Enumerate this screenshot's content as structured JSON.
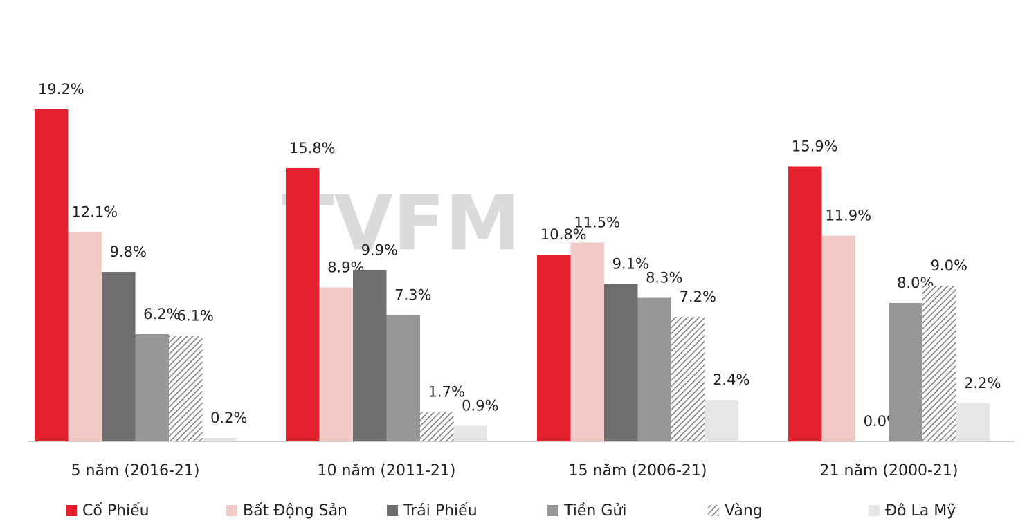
{
  "chart_data": {
    "type": "bar",
    "watermark": "TVFM",
    "categories": [
      "5 năm (2016-21)",
      "10 năm (2011-21)",
      "15 năm (2006-21)",
      "21 năm (2000-21)"
    ],
    "series": [
      {
        "name": "Cố Phiếu",
        "color": "#e3202e",
        "values": [
          19.2,
          15.8,
          10.8,
          15.9
        ],
        "value_labels": [
          "19.2%",
          "15.8%",
          "10.8%",
          "15.9%"
        ]
      },
      {
        "name": "Bất Động Sản",
        "color": "#f2cac5",
        "values": [
          12.1,
          8.9,
          11.5,
          11.9
        ],
        "value_labels": [
          "12.1%",
          "8.9%",
          "11.5%",
          "11.9%"
        ]
      },
      {
        "name": "Trái Phiếu",
        "color": "#6e6e6e",
        "values": [
          9.8,
          9.9,
          9.1,
          0.0
        ],
        "value_labels": [
          "9.8%",
          "9.9%",
          "9.1%",
          "0.0%"
        ]
      },
      {
        "name": "Tiền Gửi",
        "color": "#979797",
        "values": [
          6.2,
          7.3,
          8.3,
          8.0
        ],
        "value_labels": [
          "6.2%",
          "7.3%",
          "8.3%",
          "8.0%"
        ]
      },
      {
        "name": "Vàng",
        "color": "#7a7a7a",
        "hatch": true,
        "values": [
          6.1,
          1.7,
          7.2,
          9.0
        ],
        "value_labels": [
          "6.1%",
          "1.7%",
          "7.2%",
          "9.0%"
        ]
      },
      {
        "name": "Đô La Mỹ",
        "color": "#e6e6e6",
        "values": [
          0.2,
          0.9,
          2.4,
          2.2
        ],
        "value_labels": [
          "0.2%",
          "0.9%",
          "2.4%",
          "2.2%"
        ]
      }
    ]
  }
}
